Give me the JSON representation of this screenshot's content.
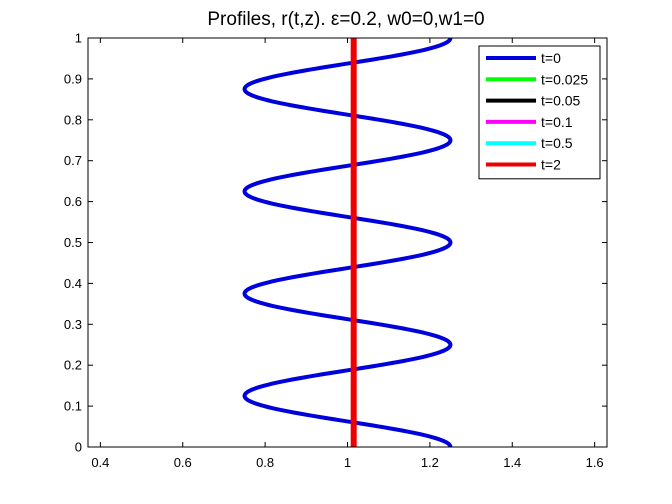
{
  "chart_data": {
    "type": "line",
    "title": "Profiles, r(t,z).   ε=0.2, w0=0,w1=0",
    "xlabel": "",
    "ylabel": "",
    "xlim": [
      0.37,
      1.63
    ],
    "ylim": [
      0,
      1
    ],
    "xticks": [
      "0.4",
      "0.6",
      "0.8",
      "1",
      "1.2",
      "1.4",
      "1.6"
    ],
    "yticks": [
      "0",
      "0.1",
      "0.2",
      "0.3",
      "0.4",
      "0.5",
      "0.6",
      "0.7",
      "0.8",
      "0.9",
      "1"
    ],
    "grid": false,
    "legend_position": "top-right",
    "series": [
      {
        "name": "t=0",
        "color": "#0000dd",
        "shape": "r = 1 + 0.25*cos(8*pi*z)",
        "x": [
          1.25,
          1.2,
          1.0,
          0.8,
          0.75,
          0.8,
          1.0,
          1.2,
          1.25,
          1.2,
          1.0,
          0.8,
          0.75,
          0.8,
          1.0,
          1.2,
          1.25,
          1.2,
          1.0,
          0.8,
          0.75,
          0.8,
          1.0,
          1.2,
          1.25,
          1.2,
          1.0,
          0.8,
          0.75,
          0.8,
          1.0,
          1.2,
          1.25
        ],
        "y": [
          0.0,
          0.025,
          0.063,
          0.1,
          0.125,
          0.15,
          0.188,
          0.225,
          0.25,
          0.275,
          0.313,
          0.35,
          0.375,
          0.4,
          0.438,
          0.475,
          0.5,
          0.525,
          0.563,
          0.6,
          0.625,
          0.65,
          0.688,
          0.725,
          0.75,
          0.775,
          0.813,
          0.85,
          0.875,
          0.9,
          0.938,
          0.975,
          1.0
        ]
      },
      {
        "name": "t=0.025",
        "color": "#00ff00",
        "x": [],
        "y": []
      },
      {
        "name": "t=0.05",
        "color": "#000000",
        "x": [],
        "y": []
      },
      {
        "name": "t=0.1",
        "color": "#ff00ff",
        "x": [],
        "y": []
      },
      {
        "name": "t=0.5",
        "color": "#00ffff",
        "x": [],
        "y": []
      },
      {
        "name": "t=2",
        "color": "#ee0000",
        "x": [
          1.015,
          1.015
        ],
        "y": [
          0,
          1
        ]
      }
    ]
  }
}
